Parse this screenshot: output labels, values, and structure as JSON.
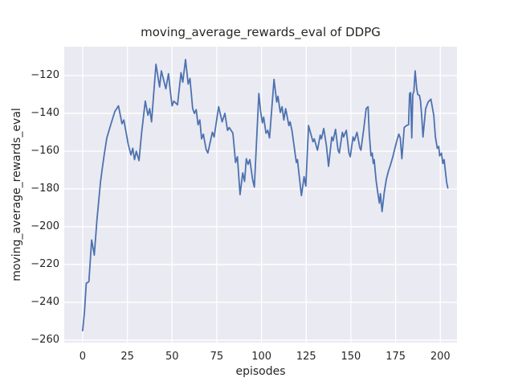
{
  "chart_data": {
    "type": "line",
    "title": "moving_average_rewards_eval of DDPG",
    "xlabel": "episodes",
    "ylabel": "moving_average_rewards_eval",
    "x_ticks": [
      0,
      25,
      50,
      75,
      100,
      125,
      150,
      175,
      200
    ],
    "y_ticks": [
      -120,
      -140,
      -160,
      -180,
      -200,
      -220,
      -240,
      -260
    ],
    "xlim": [
      -10.3,
      209.3
    ],
    "ylim": [
      -261.3,
      -104.7
    ],
    "grid": true,
    "legend": null,
    "colors": {
      "line": "#4c72b0",
      "plot_background": "#eaeaf2",
      "grid": "#ffffff",
      "text": "#262626",
      "figure_background": "#ffffff"
    },
    "series": [
      {
        "name": "moving_average_rewards_eval",
        "x": [
          0,
          1,
          2,
          3.5,
          5,
          6.5,
          8,
          10,
          11,
          12,
          13.5,
          16,
          18,
          20,
          22,
          23,
          25.5,
          27,
          28,
          29,
          30,
          31.5,
          33,
          35,
          36.5,
          37.5,
          38.5,
          41,
          43,
          44,
          46.5,
          48,
          49,
          50,
          51,
          53,
          55,
          56,
          57.5,
          59,
          60,
          61.5,
          62.5,
          63.5,
          64.5,
          65.5,
          66.5,
          67.5,
          69,
          70,
          72.5,
          73.5,
          76,
          78,
          79.5,
          81,
          82,
          84,
          85.5,
          86.5,
          88,
          89.5,
          90.5,
          91.5,
          92.5,
          93.5,
          95,
          96,
          98.5,
          99.5,
          100.5,
          101.2,
          102.5,
          103.5,
          104.5,
          107,
          108.5,
          109.2,
          110.5,
          111.5,
          112.5,
          113.5,
          115.3,
          116,
          117,
          118.3,
          119.5,
          120.1,
          121,
          122.3,
          123.8,
          124.8,
          126.3,
          128.8,
          129.5,
          131.3,
          132.8,
          133.5,
          134.8,
          136.3,
          137.5,
          139.3,
          140,
          141.4,
          142.8,
          143.5,
          145.2,
          145.9,
          147.4,
          148.9,
          149.6,
          151.2,
          151.9,
          153.4,
          154.9,
          155.6,
          157.2,
          158.5,
          159.6,
          160.2,
          161.2,
          161.9,
          162.5,
          163,
          164.1,
          165,
          165.9,
          166.5,
          167.4,
          168.6,
          169.8,
          171,
          172.2,
          173.4,
          174.6,
          175.8,
          176.8,
          177.6,
          178.5,
          179.8,
          181,
          182.2,
          182.8,
          183.4,
          184,
          184.6,
          185.2,
          185.9,
          186.8,
          187.4,
          188.3,
          188.9,
          189.6,
          190.3,
          191.8,
          193.2,
          194.7,
          196.3,
          197.2,
          198.3,
          199.1,
          199.6,
          200.6,
          201.4,
          202.1,
          203.5,
          204.2
        ],
        "y": [
          -255,
          -245,
          -230,
          -229,
          -207,
          -215,
          -196,
          -176,
          -169,
          -162,
          -153,
          -145,
          -139,
          -136,
          -145.5,
          -143.5,
          -156.5,
          -162,
          -158.5,
          -164.5,
          -160,
          -165,
          -150,
          -133.5,
          -141,
          -137.5,
          -144.5,
          -114,
          -126,
          -117.5,
          -127,
          -119,
          -128,
          -136,
          -133.5,
          -135.5,
          -118.5,
          -123.5,
          -111.5,
          -124.5,
          -121.5,
          -137.5,
          -140,
          -138,
          -146,
          -143.5,
          -153.5,
          -151,
          -159,
          -161,
          -150,
          -152.5,
          -136.5,
          -144.5,
          -140,
          -149,
          -147.5,
          -150.5,
          -166,
          -163,
          -183,
          -171.5,
          -176,
          -164,
          -167,
          -164.5,
          -175,
          -179,
          -129.5,
          -139,
          -145,
          -142,
          -150.5,
          -149,
          -153,
          -122,
          -134,
          -131,
          -139.5,
          -136.5,
          -143.5,
          -137.5,
          -146.5,
          -144.5,
          -149,
          -158,
          -166,
          -164.5,
          -172.5,
          -183.5,
          -173.5,
          -178.5,
          -146.5,
          -155,
          -153.5,
          -159.5,
          -151.5,
          -153.5,
          -148,
          -157,
          -168,
          -152.5,
          -154.5,
          -148.5,
          -159.5,
          -161,
          -150,
          -152.5,
          -149,
          -161,
          -163,
          -152.5,
          -154.5,
          -150,
          -158,
          -159.5,
          -148,
          -137.5,
          -136.5,
          -150,
          -162.5,
          -161,
          -166.5,
          -164.5,
          -175.5,
          -182,
          -187.5,
          -182.5,
          -192,
          -182,
          -175,
          -170.5,
          -167,
          -163,
          -158.5,
          -154,
          -151,
          -153,
          -164,
          -147.5,
          -146.5,
          -146,
          -129.5,
          -129,
          -153,
          -130,
          -128.5,
          -117.5,
          -127,
          -130,
          -130.5,
          -133.5,
          -141.5,
          -152.5,
          -137.5,
          -134,
          -132.5,
          -141,
          -152.5,
          -158.5,
          -157.5,
          -162.5,
          -161,
          -166.5,
          -164.5,
          -176.5,
          -179.5
        ]
      }
    ]
  }
}
